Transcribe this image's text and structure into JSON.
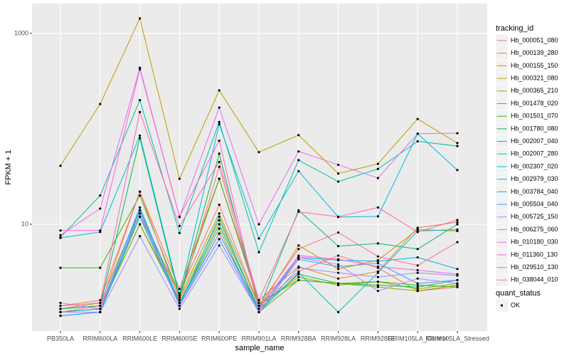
{
  "chart_data": {
    "type": "line",
    "x_label": "sample_name",
    "y_label": "FPKM + 1",
    "legend_title": "tracking_id",
    "legend": "right",
    "shape_legend": {
      "title": "quant_status",
      "labels": [
        "OK"
      ]
    },
    "log_y": true,
    "grid": true,
    "ylim": [
      0.76,
      2055
    ],
    "yticks": [
      10,
      1000
    ],
    "categories": [
      "PB350LA",
      "RRIM600LA",
      "RRIM600LE",
      "RRIM600SE",
      "RRIM600PE",
      "RRIM901LA",
      "RRIM928BA",
      "RRIM928LA",
      "RRIM928LE",
      "RRIM105LA_Control",
      "RRIM105LA_Stressed"
    ],
    "series": [
      {
        "name": "Hb_000051_080",
        "color": "#F8766D",
        "values": [
          1.3,
          1.4,
          12,
          1.9,
          16,
          1.4,
          3.2,
          4.7,
          3.5,
          2.0,
          2.2
        ]
      },
      {
        "name": "Hb_000139_280",
        "color": "#EA8331",
        "values": [
          1.4,
          1.6,
          22,
          2.1,
          30,
          1.6,
          3.6,
          2.7,
          3.2,
          9.2,
          10.5
        ]
      },
      {
        "name": "Hb_000155_150",
        "color": "#D89000",
        "values": [
          1.2,
          1.3,
          10,
          1.6,
          11,
          1.3,
          6.0,
          3.4,
          4.2,
          8.8,
          8.5
        ]
      },
      {
        "name": "Hb_000321_080",
        "color": "#C09B00",
        "values": [
          41,
          182,
          1436,
          30,
          253,
          57,
          86,
          34,
          43,
          127,
          71
        ]
      },
      {
        "name": "Hb_000365_210",
        "color": "#A3A500",
        "values": [
          1.3,
          1.5,
          14,
          1.7,
          13,
          1.4,
          2.8,
          2.3,
          2.5,
          2.1,
          2.4
        ]
      },
      {
        "name": "Hb_001478_020",
        "color": "#7CAE00",
        "values": [
          1.2,
          1.3,
          10,
          1.5,
          9,
          1.2,
          2.6,
          2.4,
          2.2,
          2.0,
          2.3
        ]
      },
      {
        "name": "Hb_001501_070",
        "color": "#39B600",
        "values": [
          3.5,
          3.5,
          20,
          1.8,
          30,
          1.5,
          2.6,
          2.4,
          2.5,
          2.3,
          2.2
        ]
      },
      {
        "name": "Hb_001780_080",
        "color": "#00BB4E",
        "values": [
          1.3,
          1.4,
          80,
          1.7,
          55,
          1.3,
          3.0,
          2.4,
          2.3,
          2.2,
          2.6
        ]
      },
      {
        "name": "Hb_002007_040",
        "color": "#00BF7D",
        "values": [
          1.1,
          1.2,
          13,
          1.5,
          10,
          1.3,
          14,
          5.9,
          6.3,
          5.5,
          10
        ]
      },
      {
        "name": "Hb_002007_280",
        "color": "#00C1A3",
        "values": [
          7.3,
          20,
          200,
          8.1,
          118,
          5.1,
          47,
          28,
          38,
          74,
          66
        ]
      },
      {
        "name": "Hb_002307_020",
        "color": "#00BFC4",
        "values": [
          1.1,
          1.2,
          12,
          1.4,
          12,
          1.2,
          3.1,
          1.2,
          3.1,
          8.5,
          8.8
        ]
      },
      {
        "name": "Hb_002979_030",
        "color": "#00BAE0",
        "values": [
          7.2,
          8.3,
          85,
          1.8,
          112,
          7.1,
          36,
          11.9,
          12.1,
          89,
          37
        ]
      },
      {
        "name": "Hb_003784_040",
        "color": "#00B0F6",
        "values": [
          1.2,
          1.3,
          15,
          1.5,
          8,
          1.3,
          4.5,
          4.2,
          4.1,
          4.5,
          3.4
        ]
      },
      {
        "name": "Hb_005504_040",
        "color": "#35A2FF",
        "values": [
          1.1,
          1.2,
          14,
          1.4,
          7,
          1.2,
          4.3,
          3.6,
          3.9,
          2.4,
          2.6
        ]
      },
      {
        "name": "Hb_005725_150",
        "color": "#9590FF",
        "values": [
          1.2,
          1.2,
          7.5,
          1.3,
          6,
          1.2,
          3.5,
          3.1,
          2.8,
          3.1,
          2.9
        ]
      },
      {
        "name": "Hb_006275_060",
        "color": "#C77CFF",
        "values": [
          1.5,
          1.3,
          13,
          1.4,
          8,
          1.2,
          4.5,
          3.8,
          2.0,
          2.7,
          2.4
        ]
      },
      {
        "name": "Hb_010180_030",
        "color": "#E76BF3",
        "values": [
          7.7,
          14.6,
          437,
          11.9,
          167,
          10,
          58,
          42,
          30.5,
          89,
          90
        ]
      },
      {
        "name": "Hb_011360_130",
        "color": "#FA62DB",
        "values": [
          8.6,
          8.6,
          420,
          12,
          75,
          1.3,
          4.7,
          4.3,
          3.6,
          3.3,
          3.0
        ]
      },
      {
        "name": "Hb_029510_130",
        "color": "#FF62BC",
        "values": [
          1.4,
          1.5,
          150,
          9.6,
          45,
          1.6,
          13.5,
          12,
          15,
          8.3,
          11.1
        ]
      },
      {
        "name": "Hb_038044_010",
        "color": "#FF6C91",
        "values": [
          1.2,
          1.4,
          22,
          1.6,
          40,
          1.4,
          5.5,
          8.2,
          4.6,
          3.7,
          6.5
        ]
      }
    ]
  }
}
